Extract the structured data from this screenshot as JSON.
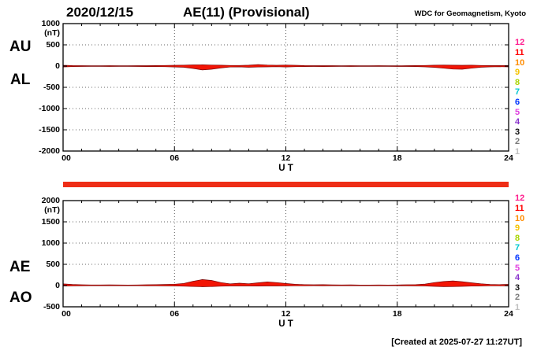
{
  "header": {
    "date": "2020/12/15",
    "title": "AE(11) (Provisional)",
    "source": "WDC for Geomagnetism, Kyoto"
  },
  "footer": {
    "created": "[Created at 2025-07-27 11:27UT]"
  },
  "colors": {
    "trace_fill": "#f21505",
    "trace_outline": "#7a0000",
    "bar": "#ee2d16",
    "grid": "#333333"
  },
  "station_count_scale": [
    {
      "label": "12",
      "color": "#ff1e8e"
    },
    {
      "label": "11",
      "color": "#ff0000"
    },
    {
      "label": "10",
      "color": "#ff8c00"
    },
    {
      "label": "9",
      "color": "#f5c400"
    },
    {
      "label": "8",
      "color": "#a8d400"
    },
    {
      "label": "7",
      "color": "#00c8d2"
    },
    {
      "label": "6",
      "color": "#0033ff"
    },
    {
      "label": "5",
      "color": "#e040e0"
    },
    {
      "label": "4",
      "color": "#8833cc"
    },
    {
      "label": "3",
      "color": "#111111"
    },
    {
      "label": "2",
      "color": "#7a7a7a"
    },
    {
      "label": "1",
      "color": "#bfbfbf"
    }
  ],
  "chart_data": [
    {
      "type": "area",
      "title": "AU / AL auroral electrojet indices",
      "left_labels": [
        "AU",
        "AL"
      ],
      "unit": "(nT)",
      "xlabel": "U T",
      "xticks": [
        "00",
        "06",
        "12",
        "18",
        "24"
      ],
      "xtick_hours": [
        0,
        6,
        12,
        18,
        24
      ],
      "x_range": [
        0,
        24
      ],
      "x_step_hours": 0.5,
      "ylim": [
        -2000,
        1000
      ],
      "yticks": [
        1000,
        500,
        0,
        -500,
        -1000,
        -1500,
        -2000
      ],
      "grid": "dotted",
      "series": [
        {
          "name": "AU",
          "values": [
            18,
            12,
            10,
            8,
            8,
            10,
            8,
            8,
            10,
            10,
            12,
            15,
            18,
            22,
            28,
            30,
            25,
            20,
            15,
            15,
            20,
            35,
            25,
            18,
            25,
            18,
            12,
            10,
            10,
            10,
            8,
            10,
            8,
            8,
            10,
            8,
            8,
            10,
            12,
            15,
            20,
            25,
            20,
            18,
            22,
            15,
            12,
            12,
            15
          ]
        },
        {
          "name": "AL",
          "values": [
            -20,
            -12,
            -10,
            -8,
            -8,
            -10,
            -8,
            -8,
            -10,
            -12,
            -12,
            -15,
            -20,
            -28,
            -55,
            -90,
            -75,
            -45,
            -22,
            -18,
            -28,
            -22,
            -18,
            -15,
            -20,
            -15,
            -12,
            -10,
            -12,
            -10,
            -8,
            -10,
            -8,
            -8,
            -8,
            -8,
            -10,
            -10,
            -12,
            -18,
            -30,
            -50,
            -70,
            -75,
            -50,
            -28,
            -18,
            -15,
            -18
          ]
        }
      ]
    },
    {
      "type": "area",
      "title": "AE / AO auroral electrojet indices",
      "left_labels": [
        "AE",
        "AO"
      ],
      "unit": "(nT)",
      "xlabel": "U T",
      "xticks": [
        "00",
        "06",
        "12",
        "18",
        "24"
      ],
      "xtick_hours": [
        0,
        6,
        12,
        18,
        24
      ],
      "x_range": [
        0,
        24
      ],
      "x_step_hours": 0.5,
      "ylim": [
        -500,
        2000
      ],
      "yticks": [
        2000,
        1500,
        1000,
        500,
        0,
        -500
      ],
      "grid": "dotted",
      "series": [
        {
          "name": "AE",
          "values": [
            38,
            25,
            18,
            15,
            14,
            16,
            14,
            13,
            15,
            18,
            20,
            26,
            32,
            50,
            100,
            140,
            120,
            70,
            40,
            55,
            42,
            65,
            85,
            70,
            48,
            30,
            22,
            18,
            20,
            16,
            14,
            16,
            13,
            13,
            14,
            13,
            15,
            18,
            22,
            35,
            70,
            95,
            110,
            90,
            65,
            42,
            26,
            22,
            28
          ]
        },
        {
          "name": "AO",
          "values": [
            -12,
            -8,
            -5,
            -4,
            -4,
            -4,
            -4,
            -4,
            -4,
            -5,
            -5,
            -7,
            -9,
            -14,
            -22,
            -28,
            -24,
            -14,
            -9,
            -9,
            -10,
            -12,
            -10,
            -9,
            -8,
            -6,
            -5,
            -4,
            -5,
            -4,
            -4,
            -4,
            -4,
            -4,
            -4,
            -4,
            -4,
            -5,
            -7,
            -10,
            -18,
            -26,
            -24,
            -18,
            -13,
            -9,
            -6,
            -5,
            -9
          ]
        }
      ]
    }
  ],
  "availability_bar": {
    "description": "data availability bar, full day",
    "color": "#ee2d16"
  }
}
